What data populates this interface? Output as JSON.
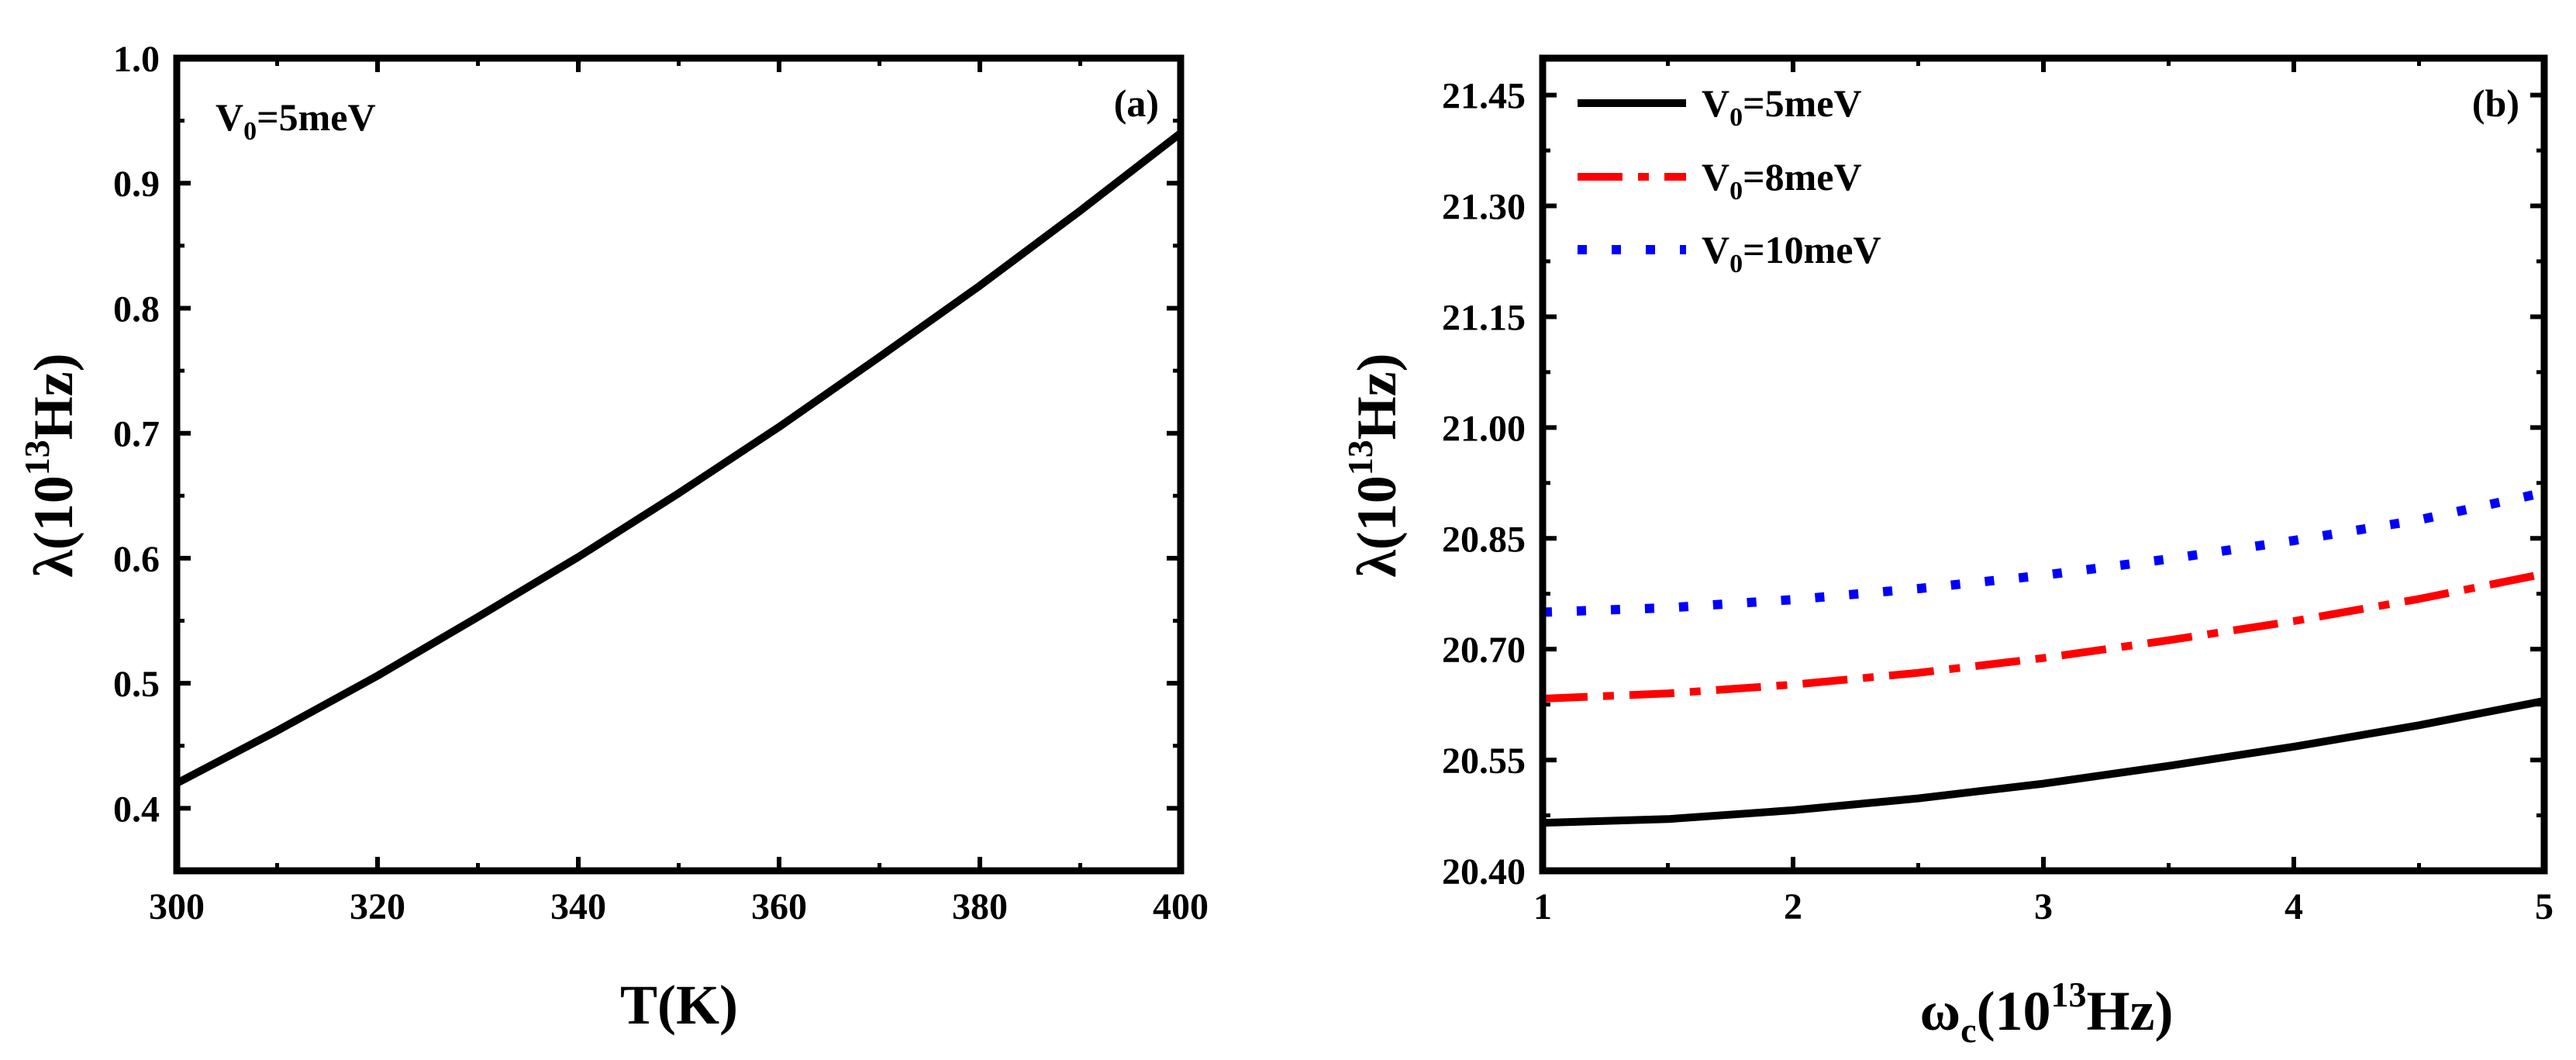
{
  "chart_data": [
    {
      "type": "line",
      "panel_label": "(a)",
      "annotation": {
        "symbol": "V",
        "subscript": "0",
        "rest": "=5meV"
      },
      "xlabel": {
        "main": "T(K)"
      },
      "ylabel": {
        "prefix": "λ(10",
        "sup": "13",
        "suffix": "Hz)"
      },
      "xlim": [
        300,
        400
      ],
      "ylim": [
        0.35,
        1.0
      ],
      "xticks": [
        300,
        320,
        340,
        360,
        380,
        400
      ],
      "yticks": [
        0.4,
        0.5,
        0.6,
        0.7,
        0.8,
        0.9,
        1.0
      ],
      "xtick_labels": [
        "300",
        "320",
        "340",
        "360",
        "380",
        "400"
      ],
      "ytick_labels": [
        "0.4",
        "0.5",
        "0.6",
        "0.7",
        "0.8",
        "0.9",
        "1.0"
      ],
      "grid": false,
      "series": [
        {
          "name": "V0=5meV",
          "color": "#000000",
          "style": "solid",
          "x": [
            300,
            310,
            320,
            330,
            340,
            350,
            360,
            370,
            380,
            390,
            400
          ],
          "y": [
            0.42,
            0.462,
            0.506,
            0.553,
            0.601,
            0.652,
            0.705,
            0.761,
            0.818,
            0.878,
            0.94
          ]
        }
      ]
    },
    {
      "type": "line",
      "panel_label": "(b)",
      "xlabel": {
        "prefix": "ω",
        "sub": "c",
        "mid": "(10",
        "sup": "13",
        "suffix": "Hz)"
      },
      "ylabel": {
        "prefix": "λ(10",
        "sup": "13",
        "suffix": "Hz)"
      },
      "xlim": [
        1,
        5
      ],
      "ylim": [
        20.4,
        21.5
      ],
      "xticks": [
        1,
        2,
        3,
        4,
        5
      ],
      "yticks": [
        20.4,
        20.55,
        20.7,
        20.85,
        21.0,
        21.15,
        21.3,
        21.45
      ],
      "xtick_labels": [
        "1",
        "2",
        "3",
        "4",
        "5"
      ],
      "ytick_labels": [
        "20.40",
        "20.55",
        "20.70",
        "20.85",
        "21.00",
        "21.15",
        "21.30",
        "21.45"
      ],
      "legend_position": "top-left",
      "grid": false,
      "series": [
        {
          "name": "V0=5meV",
          "legend": {
            "symbol": "V",
            "subscript": "0",
            "rest": "=5meV"
          },
          "color": "#000000",
          "style": "solid",
          "x": [
            1,
            1.5,
            2,
            2.5,
            3,
            3.5,
            4,
            4.5,
            5
          ],
          "y": [
            20.465,
            20.47,
            20.482,
            20.498,
            20.518,
            20.542,
            20.568,
            20.597,
            20.63
          ]
        },
        {
          "name": "V0=8meV",
          "legend": {
            "symbol": "V",
            "subscript": "0",
            "rest": "=8meV"
          },
          "color": "#ff0000",
          "style": "dashdot",
          "x": [
            1,
            1.5,
            2,
            2.5,
            3,
            3.5,
            4,
            4.5,
            5
          ],
          "y": [
            20.633,
            20.64,
            20.652,
            20.668,
            20.688,
            20.712,
            20.738,
            20.768,
            20.802
          ]
        },
        {
          "name": "V0=10meV",
          "legend": {
            "symbol": "V",
            "subscript": "0",
            "rest": "=10meV"
          },
          "color": "#0000ff",
          "style": "dotted",
          "x": [
            1,
            1.5,
            2,
            2.5,
            3,
            3.5,
            4,
            4.5,
            5
          ],
          "y": [
            20.75,
            20.756,
            20.767,
            20.782,
            20.8,
            20.822,
            20.847,
            20.875,
            20.912
          ]
        }
      ]
    }
  ]
}
